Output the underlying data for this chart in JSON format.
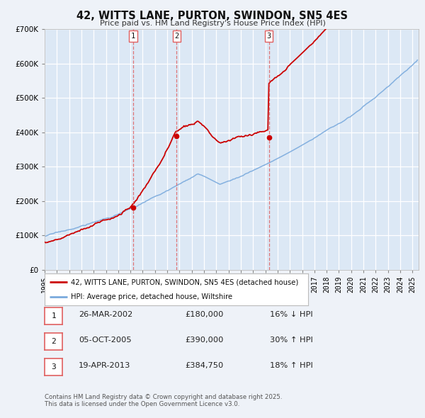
{
  "title": "42, WITTS LANE, PURTON, SWINDON, SN5 4ES",
  "subtitle": "Price paid vs. HM Land Registry's House Price Index (HPI)",
  "background_color": "#eef2f8",
  "plot_background_color": "#dce8f5",
  "grid_color": "#ffffff",
  "ylim": [
    0,
    700000
  ],
  "yticks": [
    0,
    100000,
    200000,
    300000,
    400000,
    500000,
    600000,
    700000
  ],
  "ytick_labels": [
    "£0",
    "£100K",
    "£200K",
    "£300K",
    "£400K",
    "£500K",
    "£600K",
    "£700K"
  ],
  "xlim_start": 1995.0,
  "xlim_end": 2025.5,
  "sale_dates": [
    2002.23,
    2005.76,
    2013.29
  ],
  "sale_prices": [
    180000,
    390000,
    384750
  ],
  "sale_labels": [
    "1",
    "2",
    "3"
  ],
  "vline_color": "#e06060",
  "red_line_color": "#cc0000",
  "blue_line_color": "#7aaadd",
  "legend_label_red": "42, WITTS LANE, PURTON, SWINDON, SN5 4ES (detached house)",
  "legend_label_blue": "HPI: Average price, detached house, Wiltshire",
  "transaction_rows": [
    {
      "label": "1",
      "date": "26-MAR-2002",
      "price": "£180,000",
      "hpi": "16% ↓ HPI"
    },
    {
      "label": "2",
      "date": "05-OCT-2005",
      "price": "£390,000",
      "hpi": "30% ↑ HPI"
    },
    {
      "label": "3",
      "date": "19-APR-2013",
      "price": "£384,750",
      "hpi": "18% ↑ HPI"
    }
  ],
  "footer": "Contains HM Land Registry data © Crown copyright and database right 2025.\nThis data is licensed under the Open Government Licence v3.0."
}
